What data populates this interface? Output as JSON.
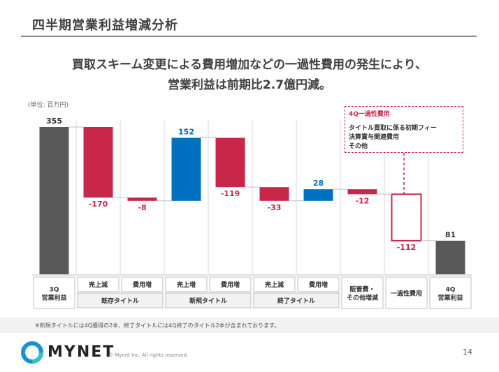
{
  "slide": {
    "title": "四半期営業利益増減分析",
    "headline_line1": "買取スキーム変更による費用増加などの一過性費用の発生により、",
    "headline_line2": "営業利益は前期比2.7億円減。",
    "unit_label": "(単位: 百万円)",
    "footnote": "※新規タイトルには4Q獲得の2本、終了タイトルには4Q終了のタイトル2本が含まれております。",
    "brand": "MYNET",
    "copyright": "© Mynet Inc. All rights reserved.",
    "page_number": "14"
  },
  "callout": {
    "title": "4Q一過性費用",
    "items": [
      "タイトル買取に係る初期フィー",
      "決算賞与関連費用",
      "その他"
    ]
  },
  "colors": {
    "total": "#595959",
    "decrease": "#c8274a",
    "increase": "#0070c0",
    "callout_border": "#c8274a"
  },
  "chart_data": {
    "type": "waterfall",
    "ylim": [
      0,
      355
    ],
    "bars": [
      {
        "category": "3Q\n営業利益",
        "value": 355,
        "label": "355",
        "kind": "total"
      },
      {
        "category": "売上減",
        "group": "既存タイトル",
        "value": -170,
        "label": "-170",
        "kind": "decrease"
      },
      {
        "category": "費用増",
        "group": "既存タイトル",
        "value": -8,
        "label": "-8",
        "kind": "decrease"
      },
      {
        "category": "売上増",
        "group": "新規タイトル",
        "value": 152,
        "label": "152",
        "kind": "increase"
      },
      {
        "category": "費用増",
        "group": "新規タイトル",
        "value": -119,
        "label": "-119",
        "kind": "decrease"
      },
      {
        "category": "売上減",
        "group": "終了タイトル",
        "value": -33,
        "label": "-33",
        "kind": "decrease"
      },
      {
        "category": "費用増",
        "group": "終了タイトル",
        "value": 28,
        "label": "28",
        "kind": "increase"
      },
      {
        "category": "販管費・\nその他増減",
        "value": -12,
        "label": "-12",
        "kind": "decrease"
      },
      {
        "category": "一過性費用",
        "value": -112,
        "label": "-112",
        "kind": "decrease_outline"
      },
      {
        "category": "4Q\n営業利益",
        "value": 81,
        "label": "81",
        "kind": "total"
      }
    ],
    "groups": [
      "既存タイトル",
      "新規タイトル",
      "終了タイトル"
    ]
  }
}
